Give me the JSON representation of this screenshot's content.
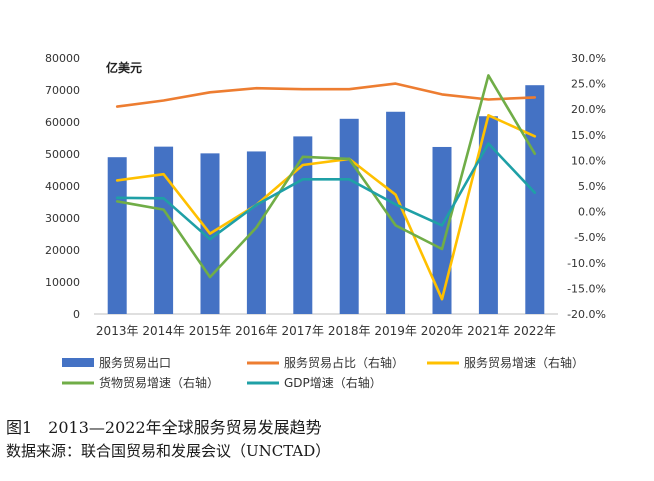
{
  "chart_data": {
    "type": "bar",
    "unit_label": "亿美元",
    "categories": [
      "2013年",
      "2014年",
      "2015年",
      "2016年",
      "2017年",
      "2018年",
      "2019年",
      "2020年",
      "2021年",
      "2022年"
    ],
    "ylim": [
      0,
      80000
    ],
    "yticks": [
      "0",
      "10000",
      "20000",
      "30000",
      "40000",
      "50000",
      "60000",
      "70000",
      "80000"
    ],
    "y2lim": [
      -0.2,
      0.3
    ],
    "y2ticks": [
      "-20.0%",
      "-15.0%",
      "-10.0%",
      "-5.0%",
      "0.0%",
      "5.0%",
      "10.0%",
      "15.0%",
      "20.0%",
      "25.0%",
      "30.0%"
    ],
    "grid": false,
    "legend_position": "bottom",
    "series": [
      {
        "name": "服务贸易出口",
        "type": "bar",
        "axis": "left",
        "color": "#4472C4",
        "values": [
          49000,
          52300,
          50200,
          50800,
          55500,
          61000,
          63200,
          52200,
          61800,
          71500
        ]
      },
      {
        "name": "服务贸易占比（右轴）",
        "type": "line",
        "axis": "right",
        "color": "#ED7D31",
        "values": [
          0.205,
          0.217,
          0.233,
          0.241,
          0.239,
          0.239,
          0.25,
          0.229,
          0.219,
          0.223
        ]
      },
      {
        "name": "服务贸易增速（右轴）",
        "type": "line",
        "axis": "right",
        "color": "#FFC000",
        "values": [
          0.061,
          0.073,
          -0.043,
          0.013,
          0.091,
          0.103,
          0.033,
          -0.171,
          0.188,
          0.147
        ]
      },
      {
        "name": "货物贸易增速（右轴）",
        "type": "line",
        "axis": "right",
        "color": "#70AD47",
        "values": [
          0.02,
          0.004,
          -0.128,
          -0.031,
          0.107,
          0.103,
          -0.027,
          -0.073,
          0.266,
          0.113
        ]
      },
      {
        "name": "GDP增速（右轴）",
        "type": "line",
        "axis": "right",
        "color": "#1FA0A6",
        "values": [
          0.027,
          0.026,
          -0.054,
          0.013,
          0.063,
          0.063,
          0.014,
          -0.027,
          0.133,
          0.037
        ]
      }
    ]
  },
  "caption": {
    "figure": "图1　2013—2022年全球服务贸易发展趋势",
    "source": "数据来源：联合国贸易和发展会议（UNCTAD）"
  }
}
